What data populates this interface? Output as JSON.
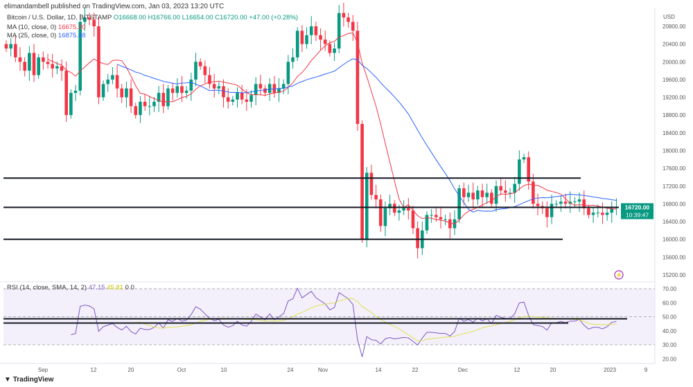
{
  "header": {
    "published": "elimandambell published on TradingView.com, Jan 03, 2023 13:20 UTC",
    "symbol": "Bitcoin / U.S. Dollar, 1D, BITSTAMP",
    "open": "O16668.00",
    "high": "H16766.00",
    "low": "L16654.00",
    "close": "C16720.00",
    "change": "+47.00 (+0.28%)",
    "ma10_label": "MA (10, close, 0)",
    "ma10_value": "16675.20",
    "ma25_label": "MA (25, close, 0)",
    "ma25_value": "16875.48"
  },
  "rsi": {
    "label": "RSI (14, close, SMA, 14, 2)",
    "value": "47.15",
    "sma_value": "45.81",
    "extra": "0 0"
  },
  "price_tag": {
    "price": "16720.00",
    "countdown": "10:39:47"
  },
  "footer": {
    "brand": "TradingView"
  },
  "colors": {
    "up": "#089981",
    "down": "#f23645",
    "ma10": "#f23645",
    "ma25": "#2962ff",
    "rsi": "#7e57c2",
    "rsi_sma": "#e0e050"
  },
  "chart_data": {
    "type": "candlestick",
    "currency": "USD",
    "start_date": "2022-08-24",
    "closes": [
      20300,
      20400,
      20100,
      20000,
      19800,
      20200,
      19700,
      20100,
      20000,
      19950,
      19850,
      19900,
      19800,
      18800,
      19300,
      19350,
      20900,
      21000,
      20950,
      20800,
      19200,
      19500,
      19600,
      19700,
      19400,
      19200,
      19400,
      19000,
      18800,
      19100,
      19000,
      19000,
      19100,
      19300,
      19000,
      19400,
      19300,
      19450,
      19300,
      19350,
      19600,
      20000,
      19900,
      19700,
      19500,
      19400,
      19450,
      19200,
      19100,
      19150,
      19300,
      19150,
      19100,
      19250,
      19500,
      19400,
      19300,
      19500,
      19300,
      19400,
      19500,
      20000,
      20100,
      20700,
      20400,
      20600,
      20800,
      20600,
      20500,
      20400,
      20200,
      20300,
      21100,
      21000,
      20900,
      20700,
      18600,
      16000,
      17500,
      17000,
      16900,
      16300,
      16700,
      16800,
      16600,
      16650,
      16700,
      16650,
      16250,
      15800,
      16200,
      16550,
      16550,
      16500,
      16450,
      16450,
      16250,
      16450,
      17150,
      16950,
      17050,
      16900,
      17100,
      16950,
      17050,
      16800,
      17200,
      17100,
      17050,
      17050,
      17250,
      17800,
      17850,
      17300,
      16800,
      16750,
      16700,
      16500,
      16800,
      16800,
      16850,
      16800,
      16850,
      16850,
      16900,
      16700,
      16550,
      16600,
      16600,
      16550,
      16600,
      16700,
      16720
    ],
    "y_ticks": [
      20800,
      20400,
      20000,
      19600,
      19200,
      18800,
      18400,
      18000,
      17600,
      17200,
      16800,
      16400,
      16000,
      15600,
      15200
    ],
    "x_ticks": [
      "Sep",
      "12",
      "20",
      "Oct",
      "10",
      "24",
      "Nov",
      "14",
      "22",
      "Dec",
      "12",
      "20",
      "2023",
      "9"
    ],
    "horizontal_levels": [
      17380,
      16720,
      16000
    ],
    "rsi_ticks": [
      "70.00",
      "60.00",
      "50.00",
      "40.00",
      "30.00",
      "20.00"
    ],
    "rsi_levels": [
      48.5,
      45.5
    ],
    "rsi_range": [
      20,
      72
    ]
  }
}
